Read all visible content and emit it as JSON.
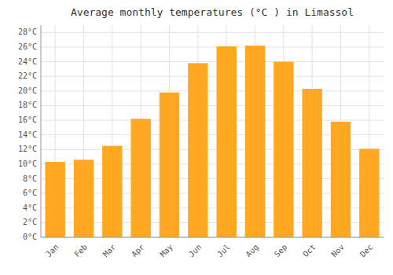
{
  "chart_data": {
    "type": "bar",
    "title": "Average monthly temperatures (°C ) in Limassol",
    "categories": [
      "Jan",
      "Feb",
      "Mar",
      "Apr",
      "May",
      "Jun",
      "Jul",
      "Aug",
      "Sep",
      "Oct",
      "Nov",
      "Dec"
    ],
    "values": [
      10.3,
      10.6,
      12.5,
      16.2,
      19.8,
      23.8,
      26.1,
      26.2,
      24.0,
      20.3,
      15.8,
      12.1
    ],
    "color": "#FFA820",
    "ylim": [
      0,
      29
    ],
    "yticks": [
      {
        "value": 0,
        "label": "0°C"
      },
      {
        "value": 2,
        "label": "2°C"
      },
      {
        "value": 4,
        "label": "4°C"
      },
      {
        "value": 6,
        "label": "6°C"
      },
      {
        "value": 8,
        "label": "8°C"
      },
      {
        "value": 10,
        "label": "10°C"
      },
      {
        "value": 12,
        "label": "12°C"
      },
      {
        "value": 14,
        "label": "14°C"
      },
      {
        "value": 16,
        "label": "16°C"
      },
      {
        "value": 18,
        "label": "18°C"
      },
      {
        "value": 20,
        "label": "20°C"
      },
      {
        "value": 22,
        "label": "22°C"
      },
      {
        "value": 24,
        "label": "24°C"
      },
      {
        "value": 26,
        "label": "26°C"
      },
      {
        "value": 28,
        "label": "28°C"
      }
    ],
    "grid": true
  }
}
